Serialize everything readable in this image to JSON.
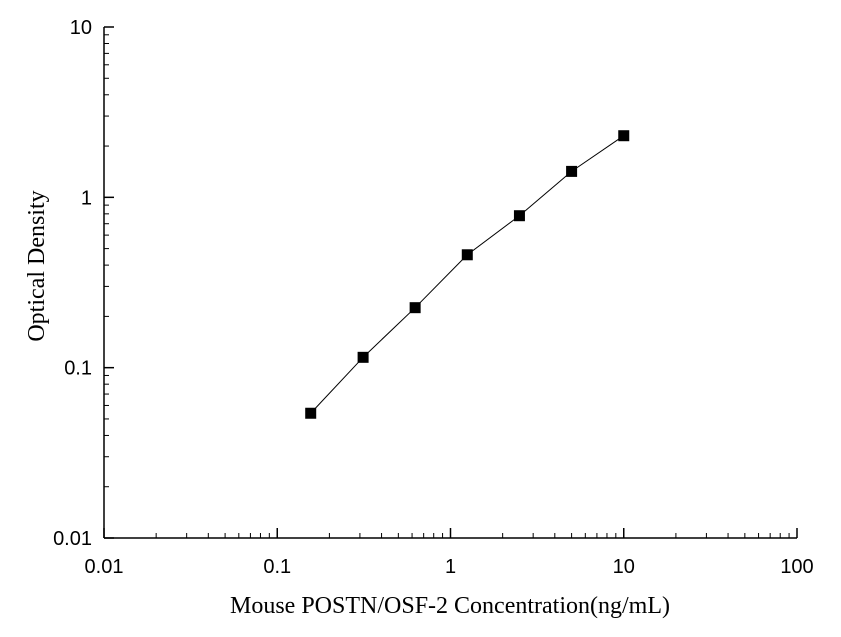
{
  "chart_data": {
    "type": "scatter",
    "title": "",
    "xlabel": "Mouse POSTN/OSF-2 Concentration(ng/mL)",
    "ylabel": "Optical Density",
    "xscale": "log",
    "yscale": "log",
    "xlim": [
      0.01,
      100
    ],
    "ylim": [
      0.01,
      10
    ],
    "xticks": [
      {
        "value": 0.01,
        "label": "0.01"
      },
      {
        "value": 0.1,
        "label": "0.1"
      },
      {
        "value": 1,
        "label": "1"
      },
      {
        "value": 10,
        "label": "10"
      },
      {
        "value": 100,
        "label": "100"
      }
    ],
    "yticks": [
      {
        "value": 0.01,
        "label": "0.01"
      },
      {
        "value": 0.1,
        "label": "0.1"
      },
      {
        "value": 1,
        "label": "1"
      },
      {
        "value": 10,
        "label": "10"
      }
    ],
    "grid": false,
    "legend": "none",
    "marker": "square",
    "marker_color": "#000000",
    "line_color": "#000000",
    "series": [
      {
        "x": [
          0.156,
          0.313,
          0.625,
          1.25,
          2.5,
          5,
          10
        ],
        "y": [
          0.054,
          0.115,
          0.225,
          0.46,
          0.78,
          1.42,
          2.3
        ]
      }
    ]
  }
}
